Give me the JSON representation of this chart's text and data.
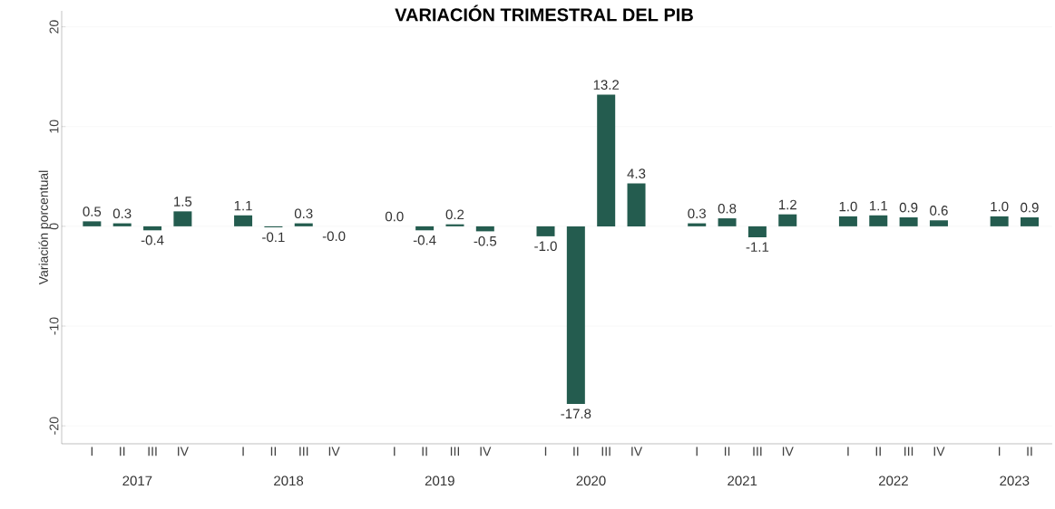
{
  "chart_data": {
    "type": "bar",
    "title": "VARIACIÓN TRIMESTRAL DEL PIB",
    "ylabel": "Variación porcentual",
    "categories": [
      "I",
      "II",
      "III",
      "IV",
      null,
      "I",
      "II",
      "III",
      "IV",
      null,
      "I",
      "II",
      "III",
      "IV",
      null,
      "I",
      "II",
      "III",
      "IV",
      null,
      "I",
      "II",
      "III",
      "IV",
      null,
      "I",
      "II",
      "III",
      "IV",
      null,
      "I",
      "II"
    ],
    "values": [
      0.5,
      0.3,
      -0.4,
      1.5,
      null,
      1.1,
      -0.1,
      0.3,
      -0.0,
      null,
      0.0,
      -0.4,
      0.2,
      -0.5,
      null,
      -1.0,
      -17.8,
      13.2,
      4.3,
      null,
      0.3,
      0.8,
      -1.1,
      1.2,
      null,
      1.0,
      1.1,
      0.9,
      0.6,
      null,
      1.0,
      0.9
    ],
    "value_labels": [
      "0.5",
      "0.3",
      "-0.4",
      "1.5",
      null,
      "1.1",
      "-0.1",
      "0.3",
      "-0.0",
      null,
      "0.0",
      "-0.4",
      "0.2",
      "-0.5",
      null,
      "-1.0",
      "-17.8",
      "13.2",
      "4.3",
      null,
      "0.3",
      "0.8",
      "-1.1",
      "1.2",
      null,
      "1.0",
      "1.1",
      "0.9",
      "0.6",
      null,
      "1.0",
      "0.9"
    ],
    "annotations": [
      "2017",
      "2018",
      "2019",
      "2020",
      "2021",
      "2022",
      "2023"
    ],
    "color": "#245c4f",
    "ylim": [
      -21.8,
      21.6
    ],
    "yticks": [
      -20,
      -10,
      0,
      10,
      20
    ],
    "grid": "y"
  }
}
